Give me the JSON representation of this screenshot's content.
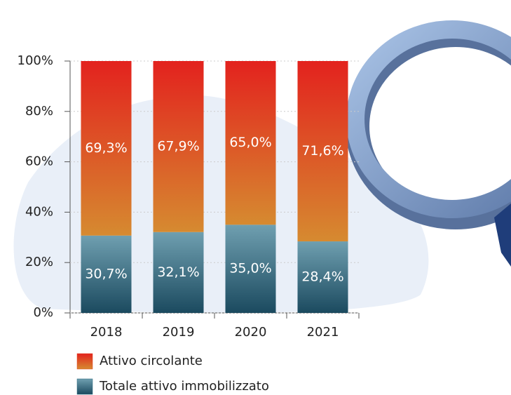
{
  "chart_data": {
    "type": "stacked-bar",
    "categories": [
      "2018",
      "2019",
      "2020",
      "2021"
    ],
    "series": [
      {
        "name": "Totale attivo immobilizzato",
        "color": "#2f6a80",
        "values": [
          30.7,
          32.1,
          35.0,
          28.4
        ],
        "value_labels": [
          "30,7%",
          "32,1%",
          "35,0%",
          "28,4%"
        ]
      },
      {
        "name": "Attivo circolante",
        "color": "#e3401f",
        "values": [
          69.3,
          67.9,
          65.0,
          71.6
        ],
        "value_labels": [
          "69,3%",
          "67,9%",
          "65,0%",
          "71,6%"
        ]
      }
    ],
    "ylim": [
      0,
      100
    ],
    "yticks": [
      {
        "value": 0,
        "label": "0%"
      },
      {
        "value": 20,
        "label": "20%"
      },
      {
        "value": 40,
        "label": "40%"
      },
      {
        "value": 60,
        "label": "60%"
      },
      {
        "value": 80,
        "label": "80%"
      },
      {
        "value": 100,
        "label": "100%"
      }
    ],
    "grid": true
  }
}
